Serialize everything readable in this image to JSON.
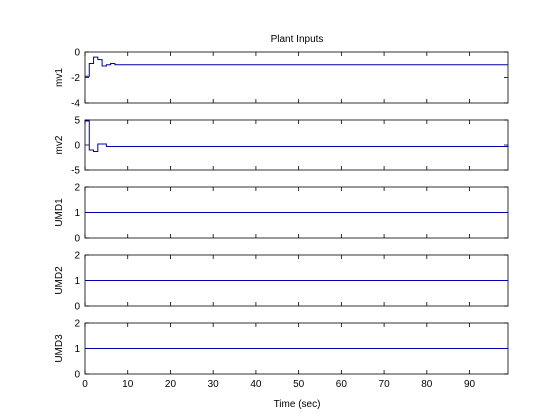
{
  "chart_data": {
    "title": "Plant Inputs",
    "xlabel": "Time (sec)",
    "type": "line",
    "line_color": "#0000aa",
    "xlim": [
      0,
      99
    ],
    "xticks": [
      "0",
      "10",
      "20",
      "30",
      "40",
      "50",
      "60",
      "70",
      "80",
      "90"
    ],
    "xtick_values": [
      0,
      10,
      20,
      30,
      40,
      50,
      60,
      70,
      80,
      90
    ],
    "subplots": [
      {
        "ylabel": "mv1",
        "ylim": [
          -4,
          0
        ],
        "yticks": [
          "-4",
          "-2",
          "0"
        ],
        "ytick_values": [
          -4,
          -2,
          0
        ],
        "step": true,
        "series": [
          {
            "x": [
              0,
              1,
              2,
              3,
              4,
              5,
              6,
              7,
              99
            ],
            "y": [
              -1.9,
              -0.9,
              -0.4,
              -0.6,
              -1.1,
              -1.0,
              -0.9,
              -1.0,
              -1.0
            ]
          }
        ]
      },
      {
        "ylabel": "mv2",
        "ylim": [
          -5,
          5
        ],
        "yticks": [
          "-5",
          "0",
          "5"
        ],
        "ytick_values": [
          -5,
          0,
          5
        ],
        "step": true,
        "series": [
          {
            "x": [
              0,
              1,
              2,
              3,
              4,
              5,
              98,
              99
            ],
            "y": [
              4.8,
              -1.0,
              -1.3,
              0.2,
              0.2,
              -0.3,
              -0.3,
              0.1
            ]
          }
        ]
      },
      {
        "ylabel": "UMD1",
        "ylim": [
          0,
          2
        ],
        "yticks": [
          "0",
          "1",
          "2"
        ],
        "ytick_values": [
          0,
          1,
          2
        ],
        "step": true,
        "series": [
          {
            "x": [
              0,
              99
            ],
            "y": [
              1,
              1
            ]
          }
        ]
      },
      {
        "ylabel": "UMD2",
        "ylim": [
          0,
          2
        ],
        "yticks": [
          "0",
          "1",
          "2"
        ],
        "ytick_values": [
          0,
          1,
          2
        ],
        "step": true,
        "series": [
          {
            "x": [
              0,
              99
            ],
            "y": [
              1,
              1
            ]
          }
        ]
      },
      {
        "ylabel": "UMD3",
        "ylim": [
          0,
          2
        ],
        "yticks": [
          "0",
          "1",
          "2"
        ],
        "ytick_values": [
          0,
          1,
          2
        ],
        "step": true,
        "series": [
          {
            "x": [
              0,
              99
            ],
            "y": [
              1,
              1
            ]
          }
        ]
      }
    ]
  }
}
